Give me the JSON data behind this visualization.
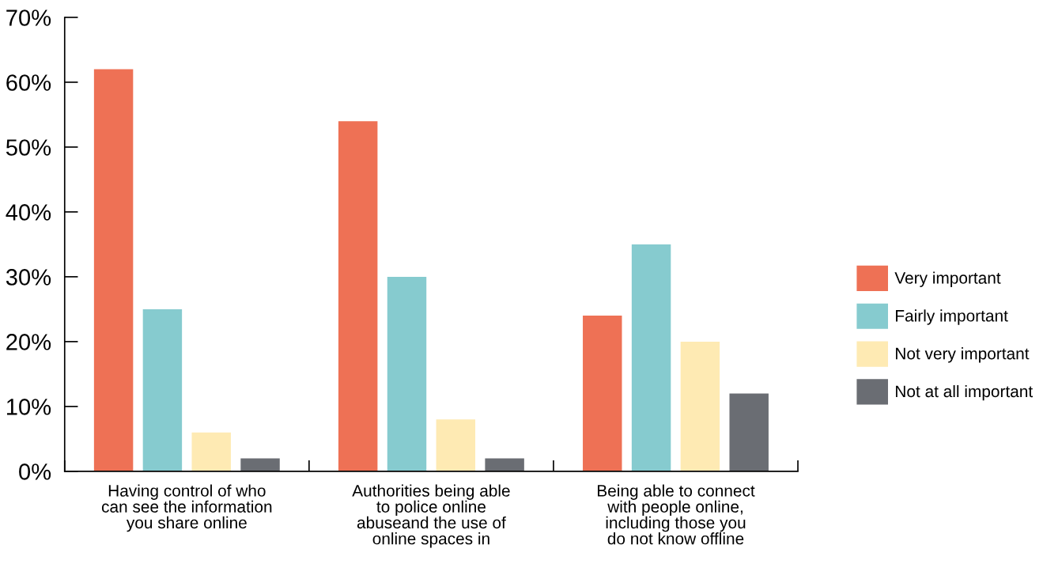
{
  "chart_data": {
    "type": "bar",
    "categories": [
      "Having control of who\ncan see the information\nyou share online",
      "Authorities being able\nto police online\nabuseand the use of\nonline spaces in",
      "Being able to connect\nwith people online,\nincluding those you\ndo not know offline"
    ],
    "series": [
      {
        "name": "Very important",
        "color": "#ee7155",
        "values": [
          62,
          54,
          24
        ]
      },
      {
        "name": "Fairly important",
        "color": "#86cbcf",
        "values": [
          25,
          30,
          35
        ]
      },
      {
        "name": "Not very important",
        "color": "#feeab3",
        "values": [
          6,
          8,
          20
        ]
      },
      {
        "name": "Not at all important",
        "color": "#6a6d73",
        "values": [
          2,
          2,
          12
        ]
      }
    ],
    "ylim": [
      0,
      70
    ],
    "yticks": [
      {
        "value": 0,
        "label": "0%"
      },
      {
        "value": 10,
        "label": "10%"
      },
      {
        "value": 20,
        "label": "20%"
      },
      {
        "value": 30,
        "label": "30%"
      },
      {
        "value": 40,
        "label": "40%"
      },
      {
        "value": 50,
        "label": "50%"
      },
      {
        "value": 60,
        "label": "60%"
      },
      {
        "value": 70,
        "label": "70%"
      }
    ],
    "grid": false,
    "legend": "right"
  }
}
